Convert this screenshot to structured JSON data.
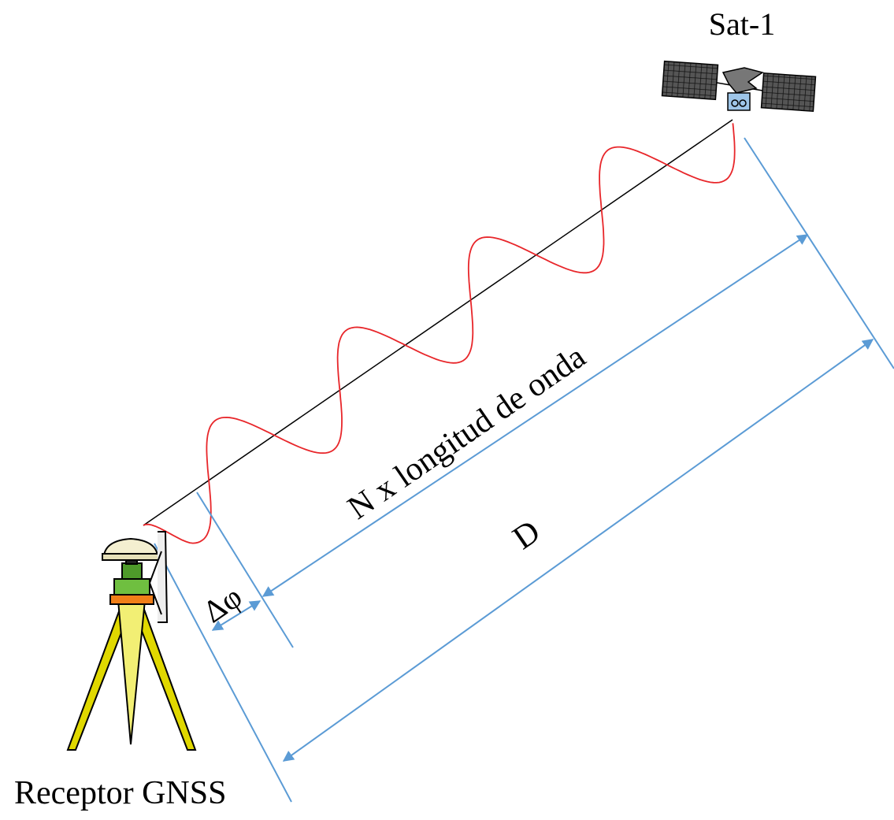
{
  "satellite": {
    "label": "Sat-1"
  },
  "receiver": {
    "label": "Receptor GNSS"
  },
  "dimensions": {
    "cycles": "N x longitud de onda",
    "distance": "D",
    "phase": "Δφ"
  }
}
